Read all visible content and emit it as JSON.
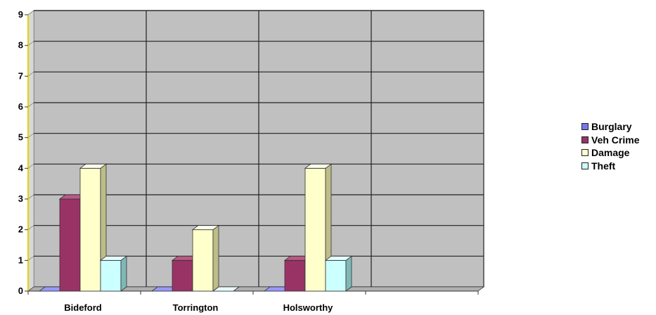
{
  "chart_data": {
    "type": "bar",
    "title": "",
    "xlabel": "",
    "ylabel": "",
    "categories": [
      "Bideford",
      "Torrington",
      "Holsworthy",
      ""
    ],
    "series": [
      {
        "name": "Burglary",
        "values": [
          0,
          0,
          0,
          0
        ],
        "color": "#7777ee",
        "side": "#4444aa",
        "top": "#9999ff"
      },
      {
        "name": "Veh Crime",
        "values": [
          3,
          1,
          1,
          0
        ],
        "color": "#993366",
        "side": "#66223f",
        "top": "#b85a85"
      },
      {
        "name": "Damage",
        "values": [
          4,
          2,
          4,
          0
        ],
        "color": "#ffffcc",
        "side": "#bdbd8a",
        "top": "#fffff0"
      },
      {
        "name": "Theft",
        "values": [
          1,
          0,
          1,
          0
        ],
        "color": "#ccffff",
        "side": "#7fb8b8",
        "top": "#e8ffff"
      }
    ],
    "ylim": [
      0,
      9
    ],
    "yticks": [
      "0",
      "1",
      "2",
      "3",
      "4",
      "5",
      "6",
      "7",
      "8",
      "9"
    ],
    "grid": true,
    "legend_position": "right",
    "plot_background": "#c0c0c0"
  }
}
